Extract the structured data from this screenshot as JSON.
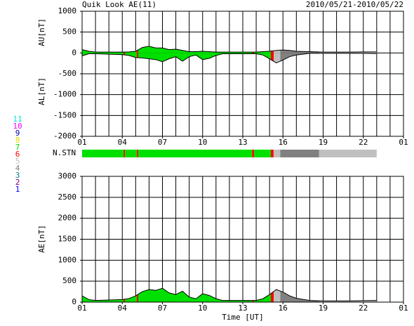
{
  "chart_data": [
    {
      "type": "area",
      "title": "Quik Look AE(11)",
      "subtitle": "2010/05/21-2010/05/22",
      "x": [
        0,
        0.5,
        1,
        2,
        3,
        3.5,
        4,
        4.5,
        5,
        5.5,
        6,
        6.5,
        7,
        7.5,
        8,
        8.5,
        9,
        9.5,
        10,
        10.5,
        11,
        12,
        13,
        13.5,
        14,
        14.5,
        15,
        15.5,
        16,
        16.5,
        17,
        18,
        19,
        20,
        21,
        22
      ],
      "xlim": [
        0,
        24
      ],
      "xticks": [
        {
          "value": 0,
          "label": "01"
        },
        {
          "value": 3,
          "label": "04"
        },
        {
          "value": 6,
          "label": "07"
        },
        {
          "value": 9,
          "label": "10"
        },
        {
          "value": 12,
          "label": "13"
        },
        {
          "value": 15,
          "label": "16"
        },
        {
          "value": 18,
          "label": "19"
        },
        {
          "value": 21,
          "label": "22"
        },
        {
          "value": 24,
          "label": "01"
        }
      ],
      "xgrid": [
        1,
        2,
        4,
        5,
        7,
        8,
        10,
        11,
        13,
        14,
        16,
        17,
        19,
        20,
        22,
        23
      ],
      "ylim": [
        -2000,
        1000
      ],
      "yticks": [
        -2000,
        -1500,
        -1000,
        -500,
        0,
        500,
        1000
      ],
      "series": [
        {
          "name": "AU[nT]",
          "color": "#000000",
          "values": [
            80,
            40,
            20,
            20,
            20,
            25,
            40,
            130,
            160,
            120,
            120,
            80,
            90,
            60,
            30,
            30,
            40,
            30,
            20,
            20,
            20,
            20,
            20,
            30,
            40,
            60,
            70,
            60,
            40,
            35,
            30,
            20,
            20,
            20,
            25,
            25
          ]
        },
        {
          "name": "AL[nT]",
          "color": "#000000",
          "values": [
            -70,
            -20,
            -20,
            -30,
            -40,
            -60,
            -110,
            -120,
            -140,
            -160,
            -210,
            -140,
            -90,
            -200,
            -90,
            -50,
            -160,
            -130,
            -60,
            -20,
            -20,
            -20,
            -20,
            -50,
            -140,
            -240,
            -170,
            -90,
            -50,
            -30,
            -10,
            -10,
            -10,
            -10,
            -10,
            -15
          ]
        }
      ]
    },
    {
      "type": "strip",
      "ylabel": "N.STN",
      "xlim": [
        0,
        24
      ],
      "legend": [
        {
          "label": "11",
          "color": "#00e0e0"
        },
        {
          "label": "10",
          "color": "#ff00ff"
        },
        {
          "label": "9",
          "color": "#0000c0"
        },
        {
          "label": "8",
          "color": "#e0e000"
        },
        {
          "label": "7",
          "color": "#00e000"
        },
        {
          "label": "6",
          "color": "#ff0000"
        },
        {
          "label": "5",
          "color": "#c0c0c0"
        },
        {
          "label": "4",
          "color": "#808080"
        },
        {
          "label": "3",
          "color": "#008080"
        },
        {
          "label": "2",
          "color": "#800080"
        },
        {
          "label": "1",
          "color": "#0000ff"
        }
      ],
      "segments": [
        {
          "start": 0,
          "end": 3.1,
          "n": 7
        },
        {
          "start": 3.1,
          "end": 3.2,
          "n": 6
        },
        {
          "start": 3.2,
          "end": 4.1,
          "n": 7
        },
        {
          "start": 4.1,
          "end": 4.2,
          "n": 6
        },
        {
          "start": 4.2,
          "end": 12.7,
          "n": 7
        },
        {
          "start": 12.7,
          "end": 12.85,
          "n": 6
        },
        {
          "start": 12.85,
          "end": 14.1,
          "n": 7
        },
        {
          "start": 14.1,
          "end": 14.3,
          "n": 6
        },
        {
          "start": 14.3,
          "end": 14.8,
          "n": 5
        },
        {
          "start": 14.8,
          "end": 17.7,
          "n": 4
        },
        {
          "start": 17.7,
          "end": 22,
          "n": 5
        }
      ]
    },
    {
      "type": "area",
      "xlabel": "Time [UT]",
      "x": [
        0,
        0.5,
        1,
        2,
        3,
        3.5,
        4,
        4.5,
        5,
        5.5,
        6,
        6.5,
        7,
        7.5,
        8,
        8.5,
        9,
        9.5,
        10,
        10.5,
        11,
        12,
        13,
        13.5,
        14,
        14.5,
        15,
        15.5,
        16,
        16.5,
        17,
        18,
        19,
        20,
        21,
        22
      ],
      "xlim": [
        0,
        24
      ],
      "xticks": [
        {
          "value": 0,
          "label": "01"
        },
        {
          "value": 3,
          "label": "04"
        },
        {
          "value": 6,
          "label": "07"
        },
        {
          "value": 9,
          "label": "10"
        },
        {
          "value": 12,
          "label": "13"
        },
        {
          "value": 15,
          "label": "16"
        },
        {
          "value": 18,
          "label": "19"
        },
        {
          "value": 21,
          "label": "22"
        },
        {
          "value": 24,
          "label": "01"
        }
      ],
      "xgrid": [
        1,
        2,
        4,
        5,
        7,
        8,
        10,
        11,
        13,
        14,
        16,
        17,
        19,
        20,
        22,
        23
      ],
      "ylim": [
        0,
        3000
      ],
      "yticks": [
        0,
        500,
        1000,
        1500,
        2000,
        2500,
        3000
      ],
      "series": [
        {
          "name": "AE[nT]",
          "color": "#000000",
          "values": [
            150,
            60,
            40,
            50,
            60,
            85,
            150,
            250,
            300,
            280,
            330,
            220,
            180,
            260,
            120,
            80,
            200,
            160,
            80,
            40,
            40,
            40,
            40,
            80,
            180,
            300,
            240,
            150,
            90,
            65,
            40,
            30,
            30,
            30,
            35,
            40
          ]
        }
      ]
    }
  ]
}
